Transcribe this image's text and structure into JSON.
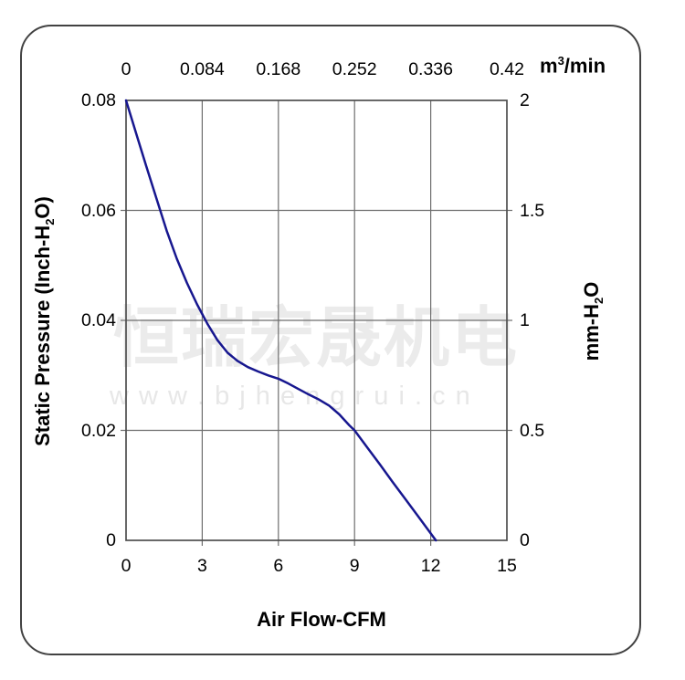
{
  "watermark": {
    "cjk": "恒瑞宏晟机电",
    "url": "w w w . b j h e n g r u i . c n"
  },
  "chart_data": {
    "type": "line",
    "title": "",
    "grid": true,
    "legend": "none",
    "x_bottom": {
      "title": "Air Flow-CFM",
      "ticks": [
        "0",
        "3",
        "6",
        "9",
        "12",
        "15"
      ],
      "range": [
        0,
        15
      ]
    },
    "x_top": {
      "unit_prefix": "m",
      "unit_sup": "3",
      "unit_suffix": "/min",
      "ticks": [
        "0",
        "0.084",
        "0.168",
        "0.252",
        "0.336",
        "0.42"
      ],
      "range": [
        0,
        0.42
      ]
    },
    "y_left": {
      "title_prefix": "Static Pressure (Inch-H",
      "title_sub": "2",
      "title_suffix": "O)",
      "ticks": [
        "0.08",
        "0.06",
        "0.04",
        "0.02",
        "0"
      ],
      "range": [
        0,
        0.08
      ]
    },
    "y_right": {
      "title_prefix": "mm-H",
      "title_sub": "2",
      "title_suffix": "O",
      "ticks": [
        "2",
        "1.5",
        "1",
        "0.5",
        "0"
      ],
      "range": [
        0,
        2
      ]
    },
    "series": [
      {
        "name": "static-pressure-curve",
        "color": "#17178f",
        "x_units": "CFM",
        "y_units": "Inch-H2O",
        "points": [
          [
            0.0,
            0.08
          ],
          [
            0.4,
            0.074
          ],
          [
            0.8,
            0.068
          ],
          [
            1.2,
            0.0621
          ],
          [
            1.6,
            0.0563
          ],
          [
            2.0,
            0.0512
          ],
          [
            2.4,
            0.0468
          ],
          [
            2.8,
            0.0429
          ],
          [
            3.2,
            0.0394
          ],
          [
            3.6,
            0.0364
          ],
          [
            4.0,
            0.0341
          ],
          [
            4.4,
            0.0326
          ],
          [
            4.8,
            0.0315
          ],
          [
            5.2,
            0.0307
          ],
          [
            5.6,
            0.03
          ],
          [
            6.0,
            0.0294
          ],
          [
            6.4,
            0.0285
          ],
          [
            6.8,
            0.0275
          ],
          [
            7.2,
            0.0265
          ],
          [
            7.6,
            0.0256
          ],
          [
            8.0,
            0.0245
          ],
          [
            8.4,
            0.0229
          ],
          [
            8.8,
            0.0209
          ],
          [
            9.0,
            0.02
          ],
          [
            9.5,
            0.0169
          ],
          [
            10.0,
            0.0138
          ],
          [
            10.5,
            0.0106
          ],
          [
            11.0,
            0.0075
          ],
          [
            11.5,
            0.0044
          ],
          [
            12.2,
            0.0
          ]
        ]
      }
    ],
    "colors": {
      "curve": "#17178f",
      "grid": "#6e6e6e",
      "plot_border": "#4f4f4f",
      "card_border": "#424242",
      "text": "#000000",
      "watermark": "#ebebeb"
    }
  }
}
